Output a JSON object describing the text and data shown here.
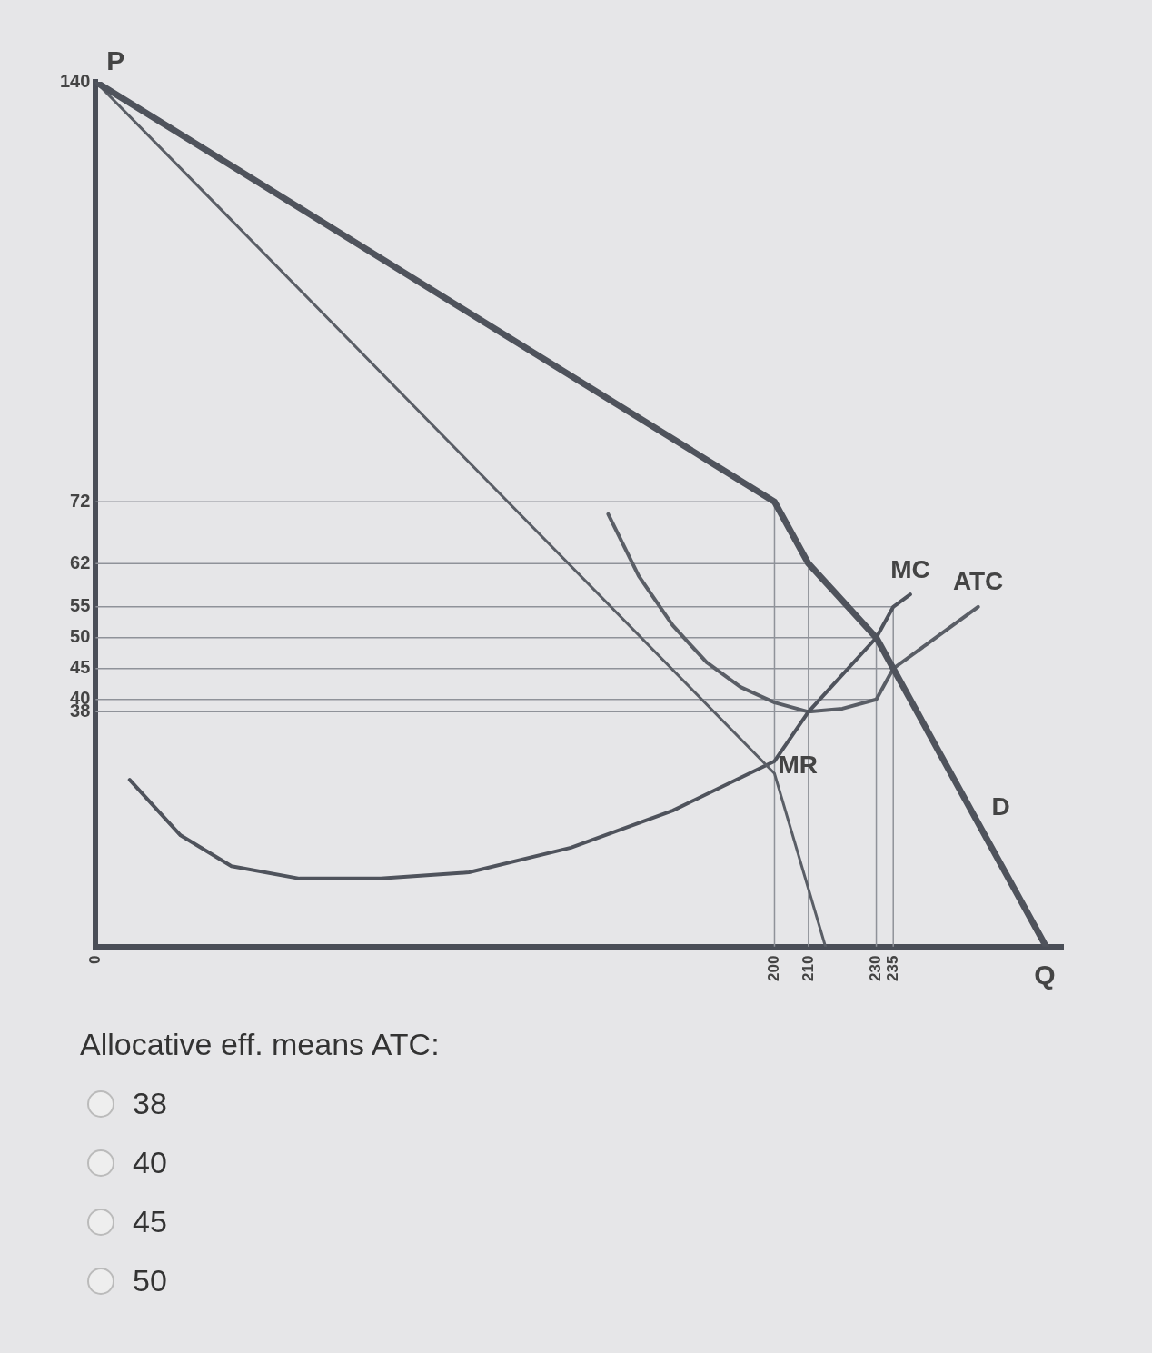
{
  "chart_data": {
    "type": "line",
    "xlabel": "Q",
    "ylabel": "P",
    "xlim": [
      0,
      285
    ],
    "ylim": [
      0,
      140
    ],
    "xticks": [
      0,
      200,
      210,
      230,
      235
    ],
    "yticks": [
      38,
      40,
      45,
      50,
      55,
      62,
      72,
      140
    ],
    "grid": false,
    "legend": false,
    "marker": "none",
    "line_style": "solid",
    "series": [
      {
        "name": "D",
        "color": "#4f535c",
        "x": [
          0,
          200,
          210,
          230,
          235,
          280
        ],
        "values": [
          140,
          72,
          62,
          50,
          45,
          0
        ]
      },
      {
        "name": "MR",
        "color": "#5a5e66",
        "x": [
          0,
          200,
          215
        ],
        "values": [
          140,
          28,
          0
        ]
      },
      {
        "name": "MC",
        "color": "#4f535c",
        "x": [
          10,
          25,
          40,
          60,
          84,
          110,
          140,
          170,
          200,
          210,
          230,
          235,
          240
        ],
        "values": [
          27,
          18,
          13,
          11,
          11,
          12,
          16,
          22,
          30,
          38,
          50,
          55,
          57
        ]
      },
      {
        "name": "ATC",
        "color": "#5a5e66",
        "x": [
          151,
          160,
          170,
          180,
          190,
          200,
          210,
          220,
          230,
          235,
          245,
          260
        ],
        "values": [
          70,
          60,
          52,
          46,
          42,
          39.5,
          38,
          38.5,
          40,
          45,
          49,
          55
        ]
      },
      {
        "color": "#8f9299",
        "x": [
          0,
          200
        ],
        "values": [
          72,
          72
        ]
      },
      {
        "color": "#8f9299",
        "x": [
          0,
          210
        ],
        "values": [
          62,
          62
        ]
      },
      {
        "color": "#8f9299",
        "x": [
          0,
          235
        ],
        "values": [
          55,
          55
        ]
      },
      {
        "color": "#8f9299",
        "x": [
          0,
          230
        ],
        "values": [
          50,
          50
        ]
      },
      {
        "color": "#8f9299",
        "x": [
          0,
          235
        ],
        "values": [
          45,
          45
        ]
      },
      {
        "color": "#8f9299",
        "x": [
          0,
          230
        ],
        "values": [
          40,
          40
        ]
      },
      {
        "color": "#8f9299",
        "x": [
          0,
          210
        ],
        "values": [
          38,
          38
        ]
      },
      {
        "color": "#8f9299",
        "x": [
          200,
          200
        ],
        "values": [
          0,
          72
        ]
      },
      {
        "color": "#8f9299",
        "x": [
          210,
          210
        ],
        "values": [
          0,
          62
        ]
      },
      {
        "color": "#8f9299",
        "x": [
          230,
          230
        ],
        "values": [
          0,
          50
        ]
      },
      {
        "color": "#8f9299",
        "x": [
          235,
          235
        ],
        "values": [
          0,
          55
        ]
      }
    ],
    "annotations": [
      "Allocative eff. means ATC:",
      "38",
      "40",
      "45",
      "50"
    ]
  }
}
